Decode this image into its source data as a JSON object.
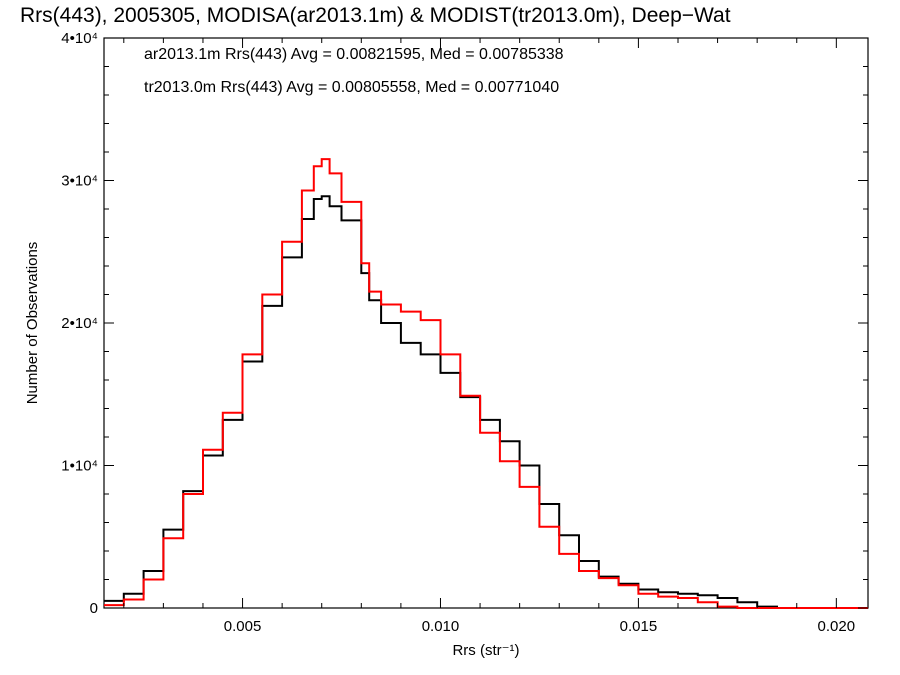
{
  "chart_data": {
    "type": "line",
    "title": "Rrs(443), 2005305, MODISA(ar2013.1m) & MODIST(tr2013.0m), Deep−Wat",
    "xlabel": "Rrs (str⁻¹)",
    "ylabel": "Number of Observations",
    "xlim": [
      0.0015,
      0.0208
    ],
    "ylim": [
      0,
      40000
    ],
    "x_ticks": [
      {
        "value": 0.005,
        "label": "0.005"
      },
      {
        "value": 0.01,
        "label": "0.010"
      },
      {
        "value": 0.015,
        "label": "0.015"
      },
      {
        "value": 0.02,
        "label": "0.020"
      }
    ],
    "y_ticks": [
      {
        "value": 0,
        "label": "0"
      },
      {
        "value": 10000,
        "label": "1•10⁴"
      },
      {
        "value": 20000,
        "label": "2•10⁴"
      },
      {
        "value": 30000,
        "label": "3•10⁴"
      },
      {
        "value": 40000,
        "label": "4•10⁴"
      }
    ],
    "grid": false,
    "legend_placement": "top-left",
    "series": [
      {
        "name": "ar2013.1m Rrs(443) Avg = 0.00821595, Med = 0.00785338",
        "color": "#000000",
        "x": [
          0.0015,
          0.002,
          0.0025,
          0.003,
          0.0035,
          0.004,
          0.0045,
          0.005,
          0.0055,
          0.006,
          0.0065,
          0.0068,
          0.007,
          0.0072,
          0.0075,
          0.008,
          0.0082,
          0.0085,
          0.009,
          0.0095,
          0.01,
          0.0105,
          0.011,
          0.0115,
          0.012,
          0.0125,
          0.013,
          0.0135,
          0.014,
          0.0145,
          0.015,
          0.0155,
          0.016,
          0.0165,
          0.017,
          0.0175,
          0.018,
          0.0185,
          0.019,
          0.02,
          0.0208
        ],
        "y": [
          500,
          1000,
          2600,
          5500,
          8200,
          10700,
          13200,
          17300,
          21200,
          24600,
          27300,
          28700,
          28900,
          28200,
          27200,
          23500,
          21600,
          20000,
          18600,
          17800,
          16500,
          14800,
          13200,
          11700,
          10000,
          7300,
          5100,
          3300,
          2200,
          1700,
          1300,
          1100,
          1000,
          900,
          700,
          400,
          100,
          0,
          0,
          0,
          0
        ]
      },
      {
        "name": "tr2013.0m Rrs(443) Avg = 0.00805558, Med = 0.00771040",
        "color": "#ff0000",
        "x": [
          0.0015,
          0.002,
          0.0025,
          0.003,
          0.0035,
          0.004,
          0.0045,
          0.005,
          0.0055,
          0.006,
          0.0065,
          0.0068,
          0.007,
          0.0072,
          0.0075,
          0.008,
          0.0082,
          0.0085,
          0.009,
          0.0095,
          0.01,
          0.0105,
          0.011,
          0.0115,
          0.012,
          0.0125,
          0.013,
          0.0135,
          0.014,
          0.0145,
          0.015,
          0.0155,
          0.016,
          0.0165,
          0.017,
          0.0175,
          0.018,
          0.0185,
          0.019,
          0.02,
          0.0208
        ],
        "y": [
          200,
          600,
          2000,
          4900,
          8000,
          11100,
          13700,
          17800,
          22000,
          25700,
          29300,
          31000,
          31500,
          30500,
          28500,
          24200,
          22200,
          21300,
          20800,
          20200,
          17800,
          14900,
          12300,
          10300,
          8500,
          5700,
          3800,
          2600,
          2100,
          1600,
          1000,
          800,
          700,
          400,
          100,
          0,
          0,
          0,
          0,
          0,
          0
        ]
      }
    ]
  }
}
